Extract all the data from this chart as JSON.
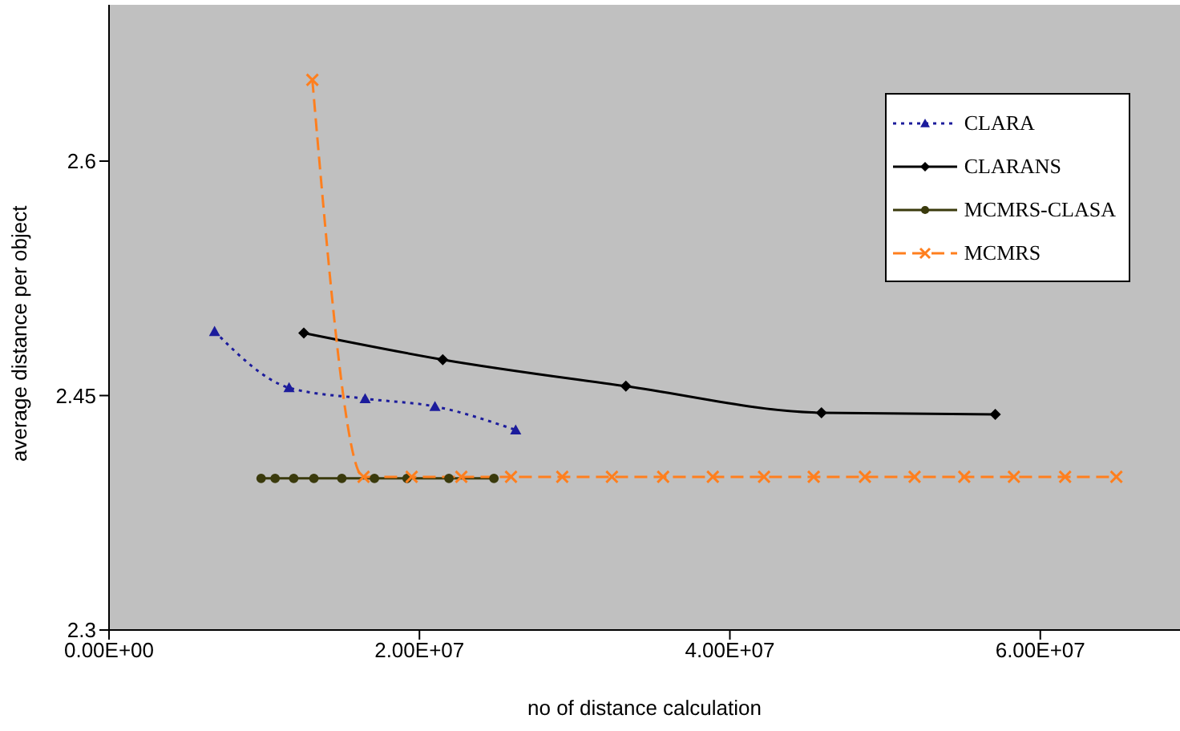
{
  "chart_data": {
    "type": "line",
    "xlabel": "no of distance calculation",
    "ylabel": "average distance per object",
    "xlim": [
      0,
      69000000
    ],
    "xticks": [
      {
        "value": 0,
        "label": "0.00E+00"
      },
      {
        "value": 20000000,
        "label": "2.00E+07"
      },
      {
        "value": 40000000,
        "label": "4.00E+07"
      },
      {
        "value": 60000000,
        "label": "6.00E+07"
      }
    ],
    "ylim": [
      2.3,
      2.7
    ],
    "yticks": [
      2.3,
      2.45,
      2.6
    ],
    "grid": false,
    "legend": "top right",
    "series": [
      {
        "name": "CLARA",
        "color": "#1c1c9c",
        "marker": "triangle",
        "line_style": "dotted",
        "x": [
          6800000,
          11600000,
          16500000,
          21000000,
          26200000
        ],
        "values": [
          2.491,
          2.455,
          2.448,
          2.443,
          2.428
        ]
      },
      {
        "name": "CLARANS",
        "color": "#000000",
        "marker": "diamond",
        "line_style": "solid",
        "x": [
          12550000,
          21500000,
          33300000,
          45900000,
          57100000
        ],
        "values": [
          2.49,
          2.473,
          2.456,
          2.439,
          2.438
        ]
      },
      {
        "name": "MCMRS-CLASA",
        "color": "#3a3a0c",
        "marker": "circle",
        "line_style": "solid",
        "x": [
          9800000,
          10700000,
          11900000,
          13200000,
          15000000,
          17100000,
          19200000,
          21900000,
          24800000
        ],
        "values": [
          2.397,
          2.397,
          2.397,
          2.397,
          2.397,
          2.397,
          2.397,
          2.397,
          2.397
        ]
      },
      {
        "name": "MCMRS",
        "color": "#ff7f1e",
        "marker": "cross",
        "line_style": "dashed",
        "x": [
          13100000,
          16400000,
          19500000,
          22700000,
          25900000,
          29200000,
          32400000,
          35700000,
          38900000,
          42200000,
          45400000,
          48700000,
          51900000,
          55100000,
          58300000,
          61600000,
          64900000
        ],
        "values": [
          2.652,
          2.398,
          2.398,
          2.398,
          2.398,
          2.398,
          2.398,
          2.398,
          2.398,
          2.398,
          2.398,
          2.398,
          2.398,
          2.398,
          2.398,
          2.398,
          2.398
        ]
      }
    ]
  }
}
